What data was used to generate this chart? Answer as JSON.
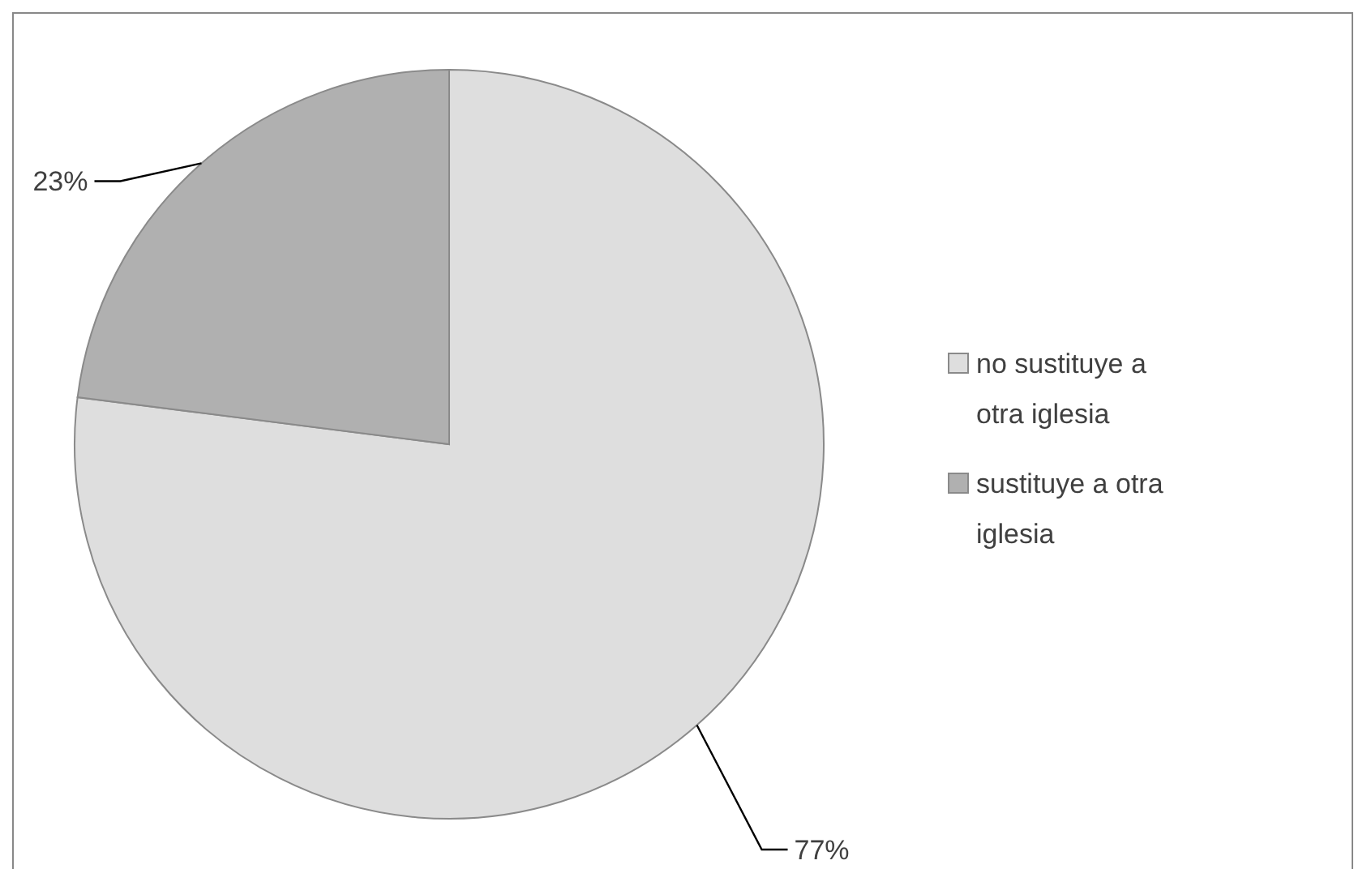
{
  "chart_data": {
    "type": "pie",
    "categories": [
      "no sustituye a otra iglesia",
      "sustituye a otra iglesia"
    ],
    "values": [
      77,
      23
    ],
    "colors": [
      "#dedede",
      "#b0b0b0"
    ],
    "value_labels": [
      "77%",
      "23%"
    ],
    "legend": "right"
  }
}
